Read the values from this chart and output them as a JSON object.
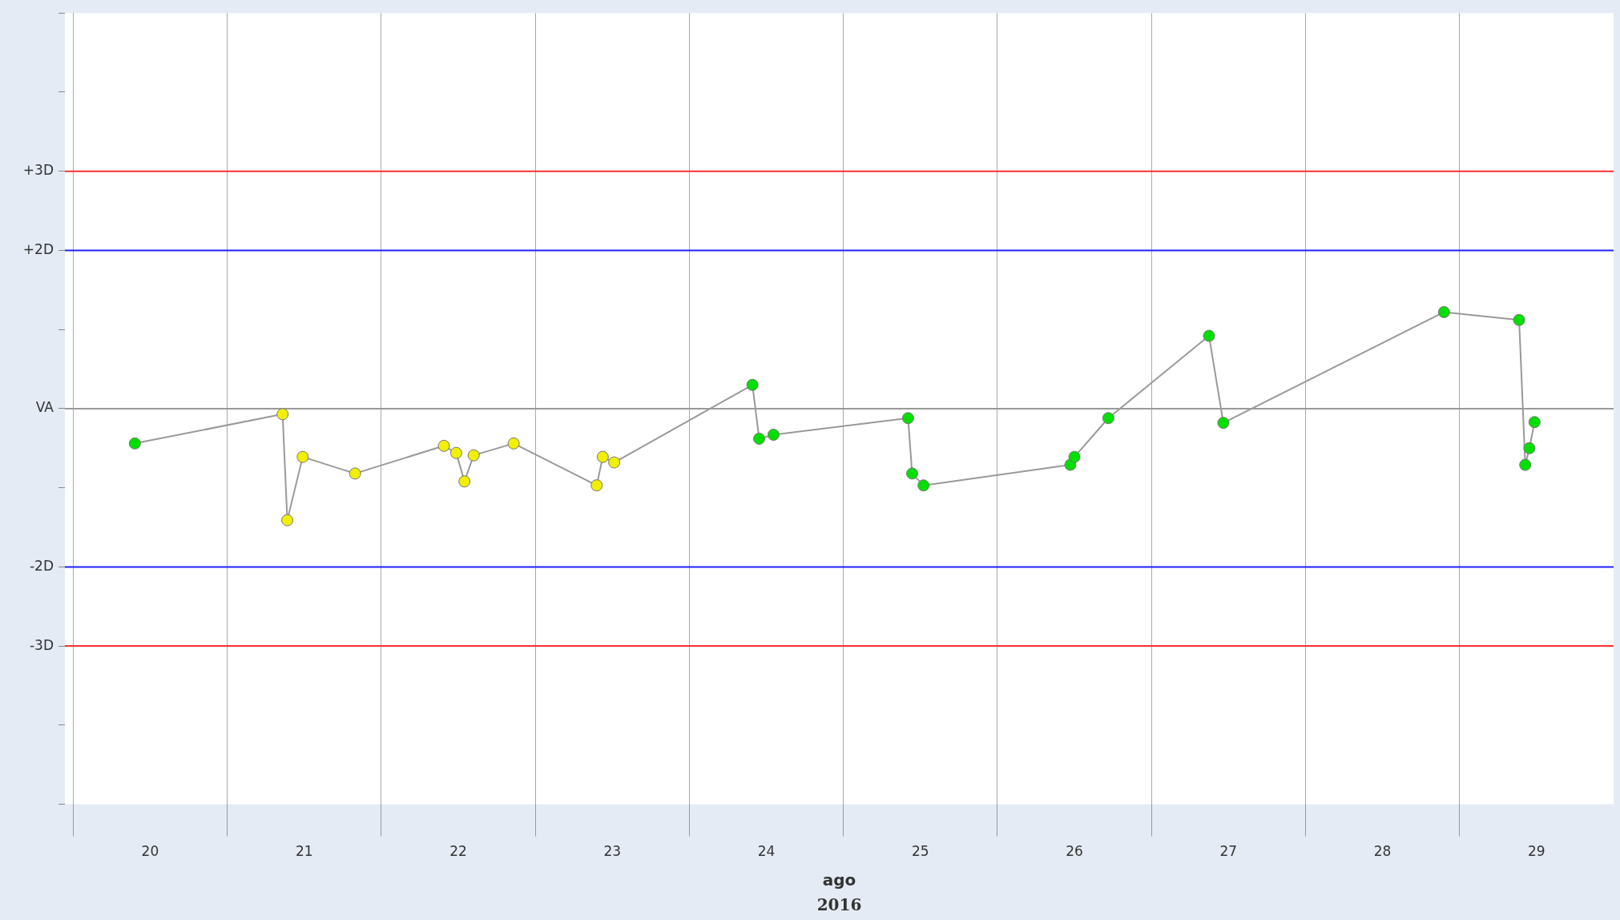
{
  "chart_data": {
    "type": "line",
    "xlabel": "ago",
    "annotations": [
      "2016"
    ],
    "color": "#999999",
    "marker": "circle",
    "line_style": "solid",
    "grid": "x",
    "x": [
      "2016-08-20T09:37",
      "2016-08-21T08:38",
      "2016-08-21T09:22",
      "2016-08-21T11:46",
      "2016-08-21T19:55",
      "2016-08-22T09:46",
      "2016-08-22T11:41",
      "2016-08-22T12:58",
      "2016-08-22T14:24",
      "2016-08-22T20:38",
      "2016-08-23T09:34",
      "2016-08-23T10:31",
      "2016-08-23T12:18",
      "2016-08-24T09:50",
      "2016-08-24T10:53",
      "2016-08-24T13:07",
      "2016-08-25T10:05",
      "2016-08-25T10:43",
      "2016-08-25T12:29",
      "2016-08-26T11:22",
      "2016-08-26T12:00",
      "2016-08-26T17:17",
      "2016-08-27T08:58",
      "2016-08-27T11:12",
      "2016-08-28T21:35",
      "2016-08-29T09:17",
      "2016-08-29T10:14",
      "2016-08-29T10:53",
      "2016-08-29T11:41"
    ],
    "values": [
      -0.44,
      -0.07,
      -1.41,
      -0.61,
      -0.82,
      -0.47,
      -0.56,
      -0.92,
      -0.59,
      -0.44,
      -0.97,
      -0.61,
      -0.68,
      0.3,
      -0.38,
      -0.33,
      -0.12,
      -0.82,
      -0.97,
      -0.71,
      -0.61,
      -0.12,
      0.92,
      -0.18,
      1.22,
      1.12,
      -0.71,
      -0.5,
      -0.17
    ],
    "colors": [
      "#00e000",
      "#f0f000",
      "#f0f000",
      "#f0f000",
      "#f0f000",
      "#f0f000",
      "#f0f000",
      "#f0f000",
      "#f0f000",
      "#f0f000",
      "#f0f000",
      "#f0f000",
      "#f0f000",
      "#00e000",
      "#00e000",
      "#00e000",
      "#00e000",
      "#00e000",
      "#00e000",
      "#00e000",
      "#00e000",
      "#00e000",
      "#00e000",
      "#00e000",
      "#00e000",
      "#00e000",
      "#00e000",
      "#00e000",
      "#00e000"
    ],
    "xlim": [
      "2016-08-19T22:43",
      "2016-08-30T00:00"
    ],
    "xticks": [
      {
        "value": "2016-08-20T00:00",
        "label": null
      },
      {
        "value": "2016-08-20T12:00",
        "label": "20"
      },
      {
        "value": "2016-08-21T00:00",
        "label": null
      },
      {
        "value": "2016-08-21T12:00",
        "label": "21"
      },
      {
        "value": "2016-08-22T00:00",
        "label": null
      },
      {
        "value": "2016-08-22T12:00",
        "label": "22"
      },
      {
        "value": "2016-08-23T00:00",
        "label": null
      },
      {
        "value": "2016-08-23T12:00",
        "label": "23"
      },
      {
        "value": "2016-08-24T00:00",
        "label": null
      },
      {
        "value": "2016-08-24T12:00",
        "label": "24"
      },
      {
        "value": "2016-08-25T00:00",
        "label": null
      },
      {
        "value": "2016-08-25T12:00",
        "label": "25"
      },
      {
        "value": "2016-08-26T00:00",
        "label": null
      },
      {
        "value": "2016-08-26T12:00",
        "label": "26"
      },
      {
        "value": "2016-08-27T00:00",
        "label": null
      },
      {
        "value": "2016-08-27T12:00",
        "label": "27"
      },
      {
        "value": "2016-08-28T00:00",
        "label": null
      },
      {
        "value": "2016-08-28T12:00",
        "label": "28"
      },
      {
        "value": "2016-08-29T00:00",
        "label": null
      },
      {
        "value": "2016-08-29T12:00",
        "label": "29"
      }
    ],
    "ylim": [
      -5,
      5
    ],
    "yticks": [
      {
        "value": -5,
        "label": null
      },
      {
        "value": -4,
        "label": null
      },
      {
        "value": -3,
        "label": "-3D"
      },
      {
        "value": -2,
        "label": "-2D"
      },
      {
        "value": -1,
        "label": null
      },
      {
        "value": 0,
        "label": "VA"
      },
      {
        "value": 1,
        "label": null
      },
      {
        "value": 2,
        "label": "+2D"
      },
      {
        "value": 3,
        "label": "+3D"
      },
      {
        "value": 4,
        "label": null
      },
      {
        "value": 5,
        "label": null
      }
    ],
    "ref_lines": [
      {
        "axis": "y",
        "value": 3,
        "color": "#ff3030"
      },
      {
        "axis": "y",
        "value": 2,
        "color": "#2020ff"
      },
      {
        "axis": "y",
        "value": 0,
        "color": "#999999"
      },
      {
        "axis": "y",
        "value": -2,
        "color": "#2020ff"
      },
      {
        "axis": "y",
        "value": -3,
        "color": "#ff3030"
      }
    ]
  }
}
